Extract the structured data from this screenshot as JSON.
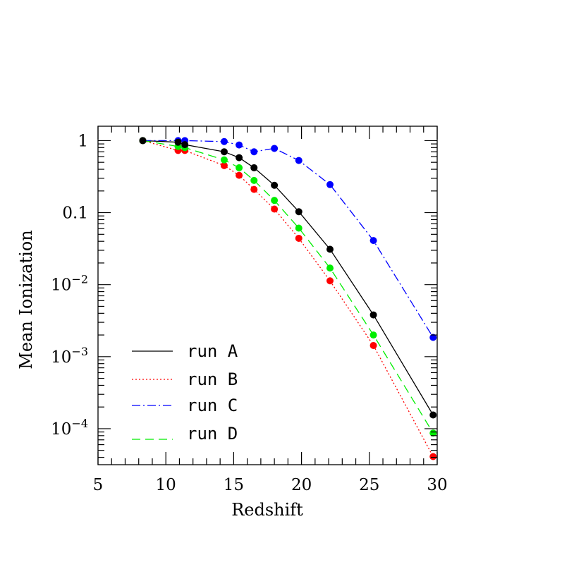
{
  "chart_data": {
    "type": "line",
    "title": "",
    "xlabel": "Redshift",
    "ylabel": "Mean Ionization",
    "xlim": [
      5,
      30
    ],
    "ylim_log10": [
      -4.5,
      0.2
    ],
    "yscale": "log",
    "grid": false,
    "legend_position": "bottom-left",
    "x_ticks": [
      {
        "value": 5,
        "label": "5"
      },
      {
        "value": 10,
        "label": "10"
      },
      {
        "value": 15,
        "label": "15"
      },
      {
        "value": 20,
        "label": "20"
      },
      {
        "value": 25,
        "label": "25"
      },
      {
        "value": 30,
        "label": "30"
      }
    ],
    "y_ticks": [
      {
        "log10": 0,
        "base": "1",
        "exp": ""
      },
      {
        "log10": -1,
        "base": "0.1",
        "exp": ""
      },
      {
        "log10": -2,
        "base": "10",
        "exp": "−2"
      },
      {
        "log10": -3,
        "base": "10",
        "exp": "−3"
      },
      {
        "log10": -4,
        "base": "10",
        "exp": "−4"
      }
    ],
    "series": [
      {
        "name": "run A",
        "color": "#000000",
        "dash": "solid",
        "x": [
          8.3,
          10.9,
          11.4,
          14.3,
          15.4,
          16.5,
          18.0,
          19.8,
          22.1,
          25.3,
          29.7
        ],
        "y": [
          1.0,
          0.95,
          0.88,
          0.7,
          0.58,
          0.42,
          0.24,
          0.103,
          0.031,
          0.0038,
          0.000155
        ]
      },
      {
        "name": "run B",
        "color": "#ff0000",
        "dash": "dotted",
        "x": [
          8.3,
          10.9,
          11.4,
          14.3,
          15.4,
          16.5,
          18.0,
          19.8,
          22.1,
          25.3,
          29.7
        ],
        "y": [
          1.0,
          0.73,
          0.73,
          0.45,
          0.33,
          0.21,
          0.112,
          0.044,
          0.0113,
          0.00143,
          4.1e-05
        ]
      },
      {
        "name": "run C",
        "color": "#0000ff",
        "dash": "dashdot",
        "x": [
          8.3,
          10.9,
          11.4,
          14.3,
          15.4,
          16.5,
          18.0,
          19.8,
          22.1,
          25.3,
          29.7
        ],
        "y": [
          1.0,
          1.0,
          1.0,
          0.97,
          0.87,
          0.7,
          0.78,
          0.53,
          0.245,
          0.041,
          0.00185
        ]
      },
      {
        "name": "run D",
        "color": "#00ee00",
        "dash": "dashed",
        "x": [
          8.3,
          10.9,
          11.4,
          14.3,
          15.4,
          16.5,
          18.0,
          19.8,
          22.1,
          25.3,
          29.7
        ],
        "y": [
          1.0,
          0.83,
          0.8,
          0.54,
          0.42,
          0.28,
          0.148,
          0.061,
          0.017,
          0.002,
          8.7e-05
        ]
      }
    ]
  }
}
